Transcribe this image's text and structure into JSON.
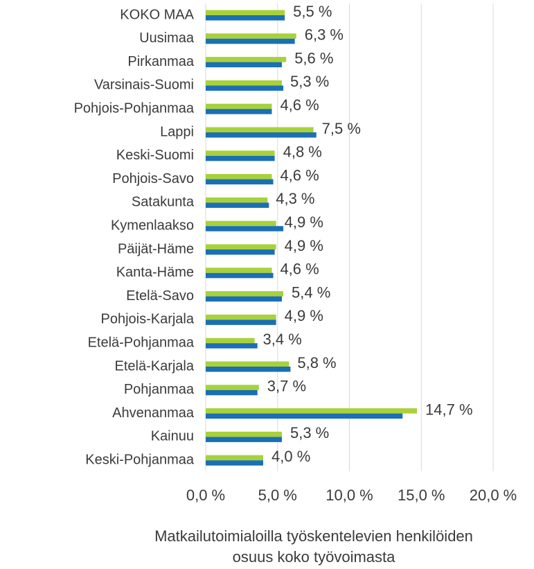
{
  "chart_data": {
    "type": "hbar",
    "categories": [
      "KOKO MAA",
      "Uusimaa",
      "Pirkanmaa",
      "Varsinais-Suomi",
      "Pohjois-Pohjanmaa",
      "Lappi",
      "Keski-Suomi",
      "Pohjois-Savo",
      "Satakunta",
      "Kymenlaakso",
      "Päijät-Häme",
      "Kanta-Häme",
      "Etelä-Savo",
      "Pohjois-Karjala",
      "Etelä-Pohjanmaa",
      "Etelä-Karjala",
      "Pohjanmaa",
      "Ahvenanmaa",
      "Kainuu",
      "Keski-Pohjanmaa"
    ],
    "series": [
      {
        "color": "#a8d13a",
        "values": [
          5.5,
          6.3,
          5.6,
          5.3,
          4.6,
          7.5,
          4.8,
          4.6,
          4.3,
          4.9,
          4.9,
          4.6,
          5.4,
          4.9,
          3.4,
          5.8,
          3.7,
          14.7,
          5.3,
          4.0
        ],
        "value_labels": [
          "5,5 %",
          "6,3 %",
          "5,6 %",
          "5,3 %",
          "4,6 %",
          "7,5 %",
          "4,8 %",
          "4,6 %",
          "4,3 %",
          "4,9 %",
          "4,9 %",
          "4,6 %",
          "5,4 %",
          "4,9 %",
          "3,4 %",
          "5,8 %",
          "3,7 %",
          "14,7 %",
          "5,3 %",
          "4,0 %"
        ]
      },
      {
        "color": "#1a6fb5",
        "values": [
          5.5,
          6.2,
          5.3,
          5.4,
          4.6,
          7.7,
          4.8,
          4.7,
          4.4,
          5.4,
          4.8,
          4.7,
          5.3,
          4.9,
          3.6,
          5.9,
          3.6,
          13.7,
          5.3,
          4.0
        ]
      }
    ],
    "xlim": [
      0,
      20
    ],
    "xticks": [
      {
        "value": 0,
        "label": "0,0 %"
      },
      {
        "value": 5,
        "label": "5,0 %"
      },
      {
        "value": 10,
        "label": "10,0 %"
      },
      {
        "value": 15,
        "label": "15,0 %"
      },
      {
        "value": 20,
        "label": "20,0 %"
      }
    ],
    "grid": true,
    "x_label": [
      "Matkailutoimialoilla työskentelevien henkilöiden",
      "osuus koko työvoimasta"
    ]
  }
}
